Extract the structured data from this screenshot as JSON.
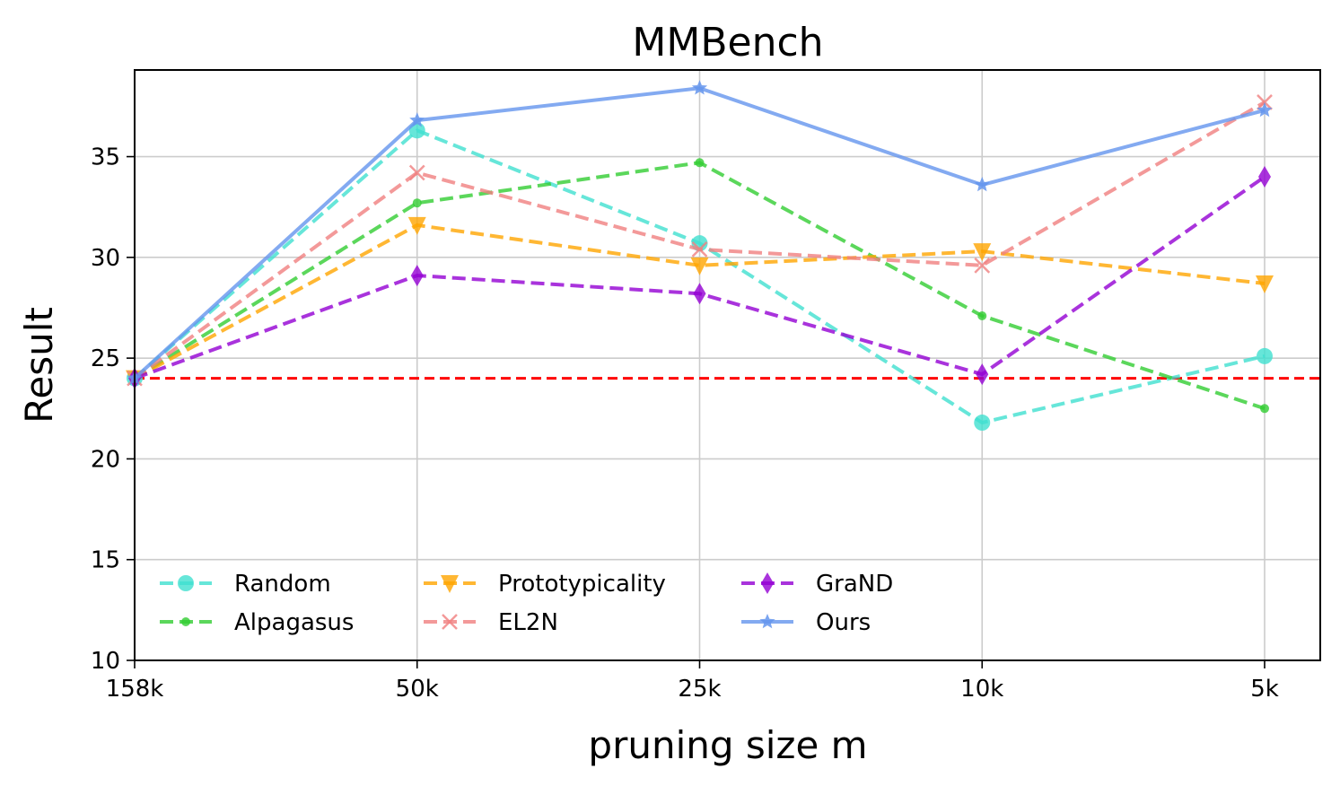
{
  "chart_data": {
    "type": "line",
    "title": "MMBench",
    "xlabel": "pruning size m",
    "ylabel": "Result",
    "categories": [
      "158k",
      "50k",
      "25k",
      "10k",
      "5k"
    ],
    "ylim": [
      10,
      39.3
    ],
    "yticks": [
      "10",
      "15",
      "20",
      "25",
      "30",
      "35"
    ],
    "ytick_values": [
      10,
      15,
      20,
      25,
      30,
      35
    ],
    "grid": true,
    "legend_location": "lower-left",
    "baseline": {
      "value": 24.0,
      "color": "#ff0000",
      "style": "dashed"
    },
    "series": [
      {
        "name": "Random",
        "values": [
          24.0,
          36.3,
          30.7,
          21.8,
          25.1
        ],
        "color": "#40e0d0",
        "marker": "circle",
        "dashed": true
      },
      {
        "name": "Alpagasus",
        "values": [
          24.0,
          32.7,
          34.7,
          27.1,
          22.5
        ],
        "color": "#32cd32",
        "marker": "point",
        "dashed": true
      },
      {
        "name": "Prototypicality",
        "values": [
          24.0,
          31.6,
          29.6,
          30.3,
          28.7
        ],
        "color": "#ffa500",
        "marker": "triangle-down",
        "dashed": true
      },
      {
        "name": "EL2N",
        "values": [
          24.0,
          34.2,
          30.4,
          29.6,
          37.7
        ],
        "color": "#f08080",
        "marker": "x",
        "dashed": true
      },
      {
        "name": "GraND",
        "values": [
          24.0,
          29.1,
          28.2,
          24.2,
          34.0
        ],
        "color": "#9400d3",
        "marker": "thin-diamond",
        "dashed": true
      },
      {
        "name": "Ours",
        "values": [
          24.0,
          36.8,
          38.4,
          33.6,
          37.3
        ],
        "color": "#6495ed",
        "marker": "star",
        "dashed": false
      }
    ]
  }
}
